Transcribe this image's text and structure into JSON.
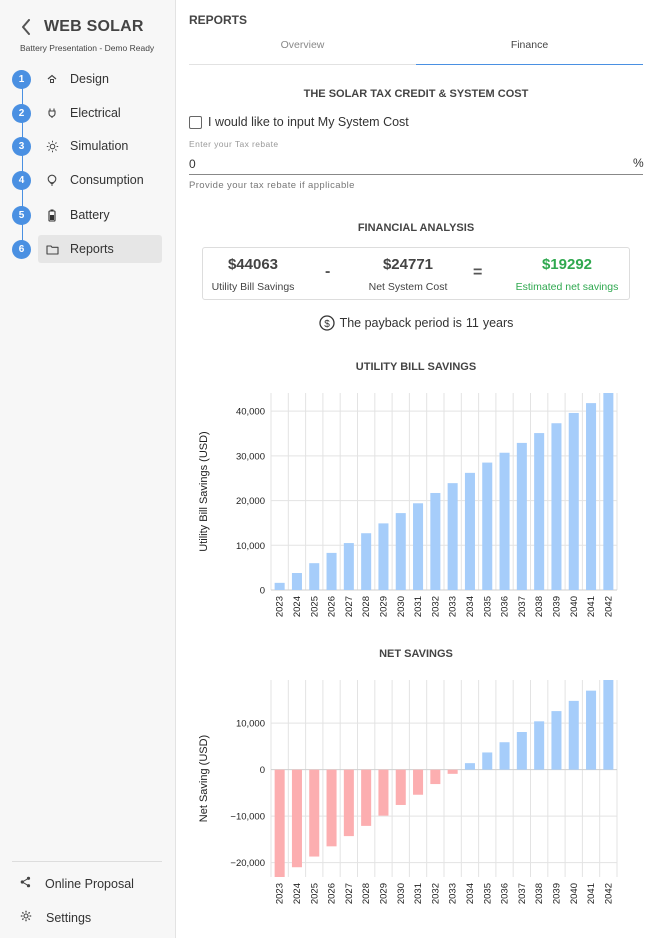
{
  "app": {
    "title": "WEB SOLAR",
    "subtitle": "Battery Presentation - Demo Ready"
  },
  "steps": [
    {
      "num": "1",
      "label": "Design",
      "icon": "solar-house-icon"
    },
    {
      "num": "2",
      "label": "Electrical",
      "icon": "plug-icon"
    },
    {
      "num": "3",
      "label": "Simulation",
      "icon": "sun-icon"
    },
    {
      "num": "4",
      "label": "Consumption",
      "icon": "lightbulb-icon"
    },
    {
      "num": "5",
      "label": "Battery",
      "icon": "battery-icon"
    },
    {
      "num": "6",
      "label": "Reports",
      "icon": "folder-icon",
      "active": true
    }
  ],
  "sidebar_bottom": {
    "online_proposal": "Online Proposal",
    "settings": "Settings"
  },
  "reports": {
    "title": "REPORTS",
    "tabs": [
      {
        "label": "Overview",
        "active": false
      },
      {
        "label": "Finance",
        "active": true
      }
    ],
    "tax_section_title": "THE SOLAR TAX CREDIT & SYSTEM COST",
    "checkbox_label": "I would like to input My System Cost",
    "checkbox_checked": false,
    "tax_field": {
      "label": "Enter your Tax rebate",
      "value": "0",
      "suffix": "%",
      "helper": "Provide your tax rebate if applicable"
    },
    "financial_title": "FINANCIAL ANALYSIS",
    "financial": {
      "utility_value": "$44063",
      "utility_caption": "Utility Bill Savings",
      "minus": "-",
      "net_cost_value": "$24771",
      "net_cost_caption": "Net System Cost",
      "equals": "=",
      "net_savings_value": "$19292",
      "net_savings_caption": "Estimated net savings"
    },
    "payback": {
      "prefix": "The payback period is",
      "years": "11",
      "suffix": "years"
    }
  },
  "colors": {
    "accent": "#4a90e2",
    "positive_bar": "#a6cdfa",
    "negative_bar": "#fcaeb0",
    "green": "#2fa84f"
  },
  "chart_data": [
    {
      "type": "bar",
      "title": "UTILITY BILL SAVINGS",
      "xlabel": "",
      "ylabel": "Utility Bill Savings (USD)",
      "categories": [
        "2023",
        "2024",
        "2025",
        "2026",
        "2027",
        "2028",
        "2029",
        "2030",
        "2031",
        "2032",
        "2033",
        "2034",
        "2035",
        "2036",
        "2037",
        "2038",
        "2039",
        "2040",
        "2041",
        "2042"
      ],
      "values": [
        1600,
        3800,
        6000,
        8300,
        10500,
        12700,
        14900,
        17200,
        19400,
        21700,
        23900,
        26200,
        28500,
        30700,
        32900,
        35100,
        37300,
        39600,
        41800,
        44063
      ],
      "ylim": [
        0,
        44063
      ],
      "yticks": [
        0,
        10000,
        20000,
        30000,
        40000
      ],
      "ytick_labels": [
        "0",
        "10,000",
        "20,000",
        "30,000",
        "40,000"
      ],
      "grid": true
    },
    {
      "type": "bar",
      "title": "NET SAVINGS",
      "xlabel": "",
      "ylabel": "Net Saving (USD)",
      "categories": [
        "2023",
        "2024",
        "2025",
        "2026",
        "2027",
        "2028",
        "2029",
        "2030",
        "2031",
        "2032",
        "2033",
        "2034",
        "2035",
        "2036",
        "2037",
        "2038",
        "2039",
        "2040",
        "2041",
        "2042"
      ],
      "values": [
        -23100,
        -21000,
        -18700,
        -16500,
        -14300,
        -12100,
        -9900,
        -7600,
        -5400,
        -3100,
        -900,
        1400,
        3700,
        5900,
        8100,
        10400,
        12600,
        14800,
        17000,
        19292
      ],
      "ylim": [
        -23100,
        19292
      ],
      "yticks": [
        -20000,
        -10000,
        0,
        10000
      ],
      "ytick_labels": [
        "−20,000",
        "−10,000",
        "0",
        "10,000"
      ],
      "grid": true
    }
  ]
}
